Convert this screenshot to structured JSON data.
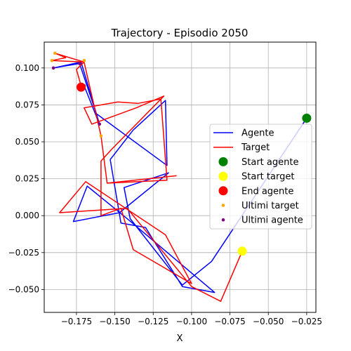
{
  "chart_data": {
    "type": "line",
    "title": "Trajectory - Episodio 2050",
    "xlabel": "X",
    "ylabel": "",
    "xlim": [
      -0.196,
      -0.019
    ],
    "ylim": [
      -0.0655,
      0.1175
    ],
    "x_ticks": [
      -0.175,
      -0.15,
      -0.125,
      -0.1,
      -0.075,
      -0.05,
      -0.025
    ],
    "x_tick_labels": [
      "−0.175",
      "−0.150",
      "−0.125",
      "−0.100",
      "−0.075",
      "−0.050",
      "−0.025"
    ],
    "y_ticks": [
      -0.05,
      -0.025,
      0.0,
      0.025,
      0.05,
      0.075,
      0.1
    ],
    "y_tick_labels": [
      "−0.050",
      "−0.025",
      "0.000",
      "0.025",
      "0.050",
      "0.075",
      "0.100"
    ],
    "grid": true,
    "legend_position": "right",
    "series": [
      {
        "name": "Agente",
        "color": "#0000ff",
        "points": [
          [
            -0.025,
            0.066
          ],
          [
            -0.087,
            -0.031
          ],
          [
            -0.106,
            -0.047
          ],
          [
            -0.14,
            -0.002
          ],
          [
            -0.144,
            0.019
          ],
          [
            -0.115,
            0.029
          ],
          [
            -0.147,
            0.002
          ],
          [
            -0.177,
            -0.004
          ],
          [
            -0.168,
            0.02
          ],
          [
            -0.142,
            -0.002
          ],
          [
            -0.085,
            -0.052
          ],
          [
            -0.106,
            -0.048
          ],
          [
            -0.13,
            -0.008
          ],
          [
            -0.146,
            -0.005
          ],
          [
            -0.153,
            0.038
          ],
          [
            -0.138,
            0.058
          ],
          [
            -0.117,
            0.078
          ],
          [
            -0.116,
            0.034
          ],
          [
            -0.162,
            0.069
          ],
          [
            -0.173,
            0.103
          ],
          [
            -0.19,
            0.1
          ],
          [
            -0.172,
            0.104
          ],
          [
            -0.16,
            0.062
          ],
          [
            -0.17,
            0.088
          ],
          [
            -0.172,
            0.087
          ]
        ]
      },
      {
        "name": "Target",
        "color": "#ff0000",
        "points": [
          [
            -0.067,
            -0.024
          ],
          [
            -0.081,
            -0.058
          ],
          [
            -0.1,
            -0.048
          ],
          [
            -0.142,
            0.005
          ],
          [
            -0.186,
            0.002
          ],
          [
            -0.169,
            0.023
          ],
          [
            -0.117,
            -0.013
          ],
          [
            -0.1,
            -0.046
          ],
          [
            -0.138,
            -0.023
          ],
          [
            -0.146,
            0.005
          ],
          [
            -0.159,
            0.0
          ],
          [
            -0.159,
            0.037
          ],
          [
            -0.152,
            0.045
          ],
          [
            -0.118,
            0.081
          ],
          [
            -0.136,
            0.073
          ],
          [
            -0.165,
            0.062
          ],
          [
            -0.17,
            0.073
          ],
          [
            -0.148,
            0.077
          ],
          [
            -0.135,
            0.076
          ],
          [
            -0.12,
            0.079
          ],
          [
            -0.116,
            0.024
          ],
          [
            -0.155,
            0.022
          ],
          [
            -0.11,
            0.027
          ],
          [
            -0.155,
            0.022
          ],
          [
            -0.159,
            0.054
          ],
          [
            -0.17,
            0.104
          ],
          [
            -0.191,
            0.105
          ],
          [
            -0.182,
            0.107
          ],
          [
            -0.189,
            0.11
          ],
          [
            -0.17,
            0.104
          ],
          [
            -0.175,
            0.099
          ],
          [
            -0.172,
            0.088
          ],
          [
            -0.172,
            0.087
          ]
        ]
      }
    ],
    "markers": [
      {
        "name": "Start agente",
        "color": "#008000",
        "x": -0.025,
        "y": 0.066
      },
      {
        "name": "Start target",
        "color": "#ffff00",
        "x": -0.067,
        "y": -0.024
      },
      {
        "name": "End agente",
        "color": "#ff0000",
        "x": -0.172,
        "y": 0.087
      }
    ],
    "recent_points": [
      {
        "name": "Ultimi target",
        "color": "#ffa500",
        "points": [
          [
            -0.191,
            0.105
          ],
          [
            -0.189,
            0.11
          ],
          [
            -0.17,
            0.105
          ],
          [
            -0.159,
            0.054
          ],
          [
            -0.172,
            0.088
          ]
        ]
      },
      {
        "name": "Ultimi agente",
        "color": "#800080",
        "points": [
          [
            -0.19,
            0.1
          ],
          [
            -0.173,
            0.103
          ],
          [
            -0.16,
            0.062
          ],
          [
            -0.17,
            0.088
          ],
          [
            -0.172,
            0.087
          ]
        ]
      }
    ]
  }
}
